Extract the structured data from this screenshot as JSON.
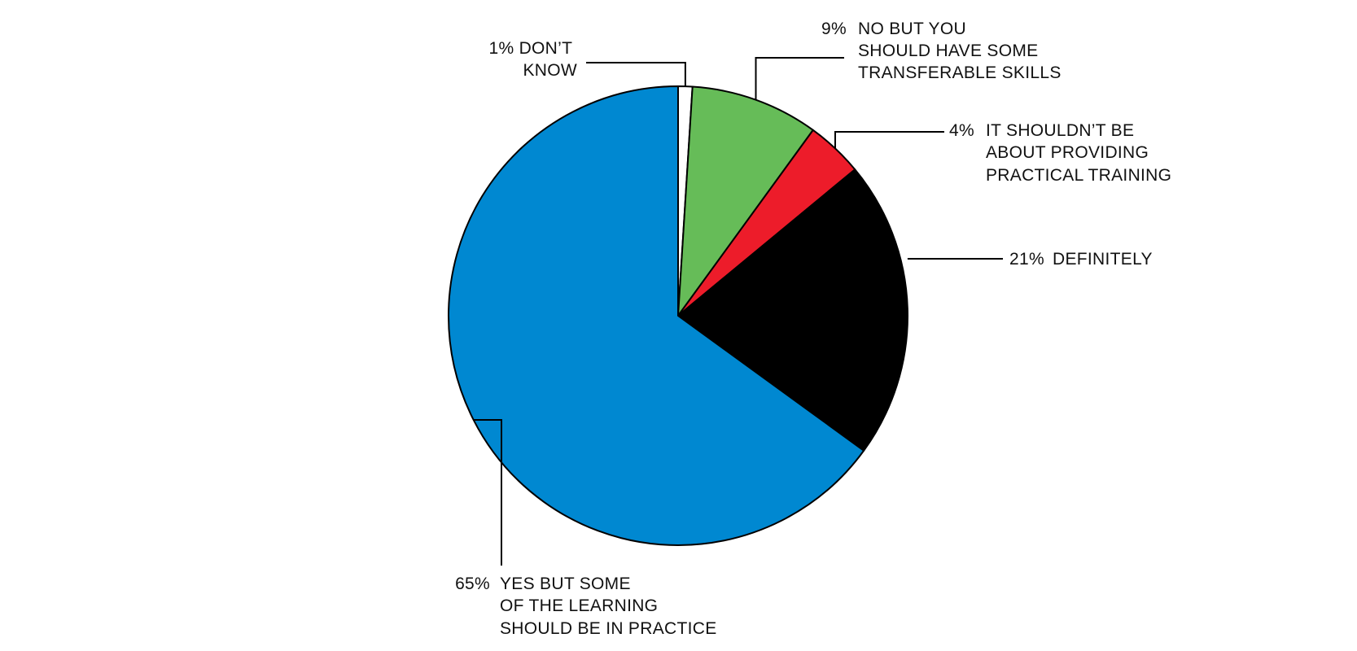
{
  "chart_data": {
    "type": "pie",
    "slices": [
      {
        "pct_label": "1%",
        "value": 1,
        "color": "#ffffff",
        "label_lines": [
          "DON’T",
          "KNOW"
        ]
      },
      {
        "pct_label": "9%",
        "value": 9,
        "color": "#66bc58",
        "label_lines": [
          "NO BUT YOU",
          "SHOULD HAVE SOME",
          "TRANSFERABLE SKILLS"
        ]
      },
      {
        "pct_label": "4%",
        "value": 4,
        "color": "#ed1c2a",
        "label_lines": [
          "IT SHOULDN’T BE",
          "ABOUT PROVIDING",
          "PRACTICAL TRAINING"
        ]
      },
      {
        "pct_label": "21%",
        "value": 21,
        "color": "#000000",
        "label_lines": [
          "DEFINITELY"
        ]
      },
      {
        "pct_label": "65%",
        "value": 65,
        "color": "#0088d1",
        "label_lines": [
          "YES BUT SOME",
          "OF THE LEARNING",
          "SHOULD BE IN PRACTICE"
        ]
      }
    ],
    "start": "12 o'clock",
    "direction": "clockwise",
    "legend": "none",
    "labels": "outside with leader lines"
  }
}
